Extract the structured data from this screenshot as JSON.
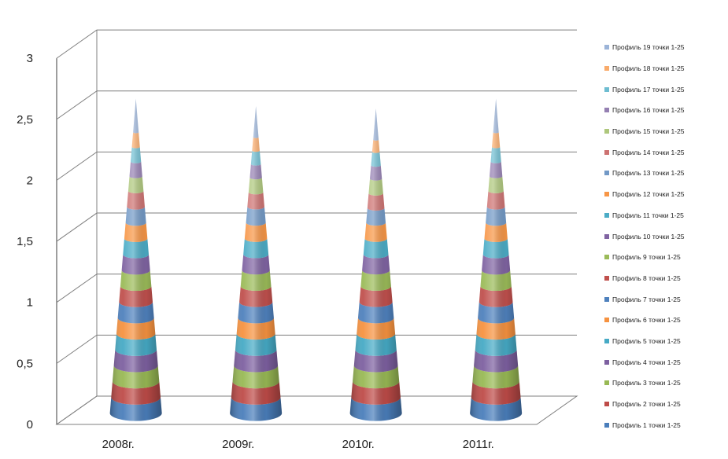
{
  "chart_data": {
    "type": "bar",
    "shape": "cone-3d-stacked",
    "categories": [
      "2008г.",
      "2009г.",
      "2010г.",
      "2011г."
    ],
    "ylim": [
      0,
      3
    ],
    "yticks": [
      "0",
      "0,5",
      "1",
      "1,5",
      "2",
      "2,5",
      "3"
    ],
    "ytick_values": [
      0,
      0.5,
      1,
      1.5,
      2,
      2.5,
      3
    ],
    "grid": true,
    "legend_position": "right",
    "series": [
      {
        "name": "Профиль 1 точки 1-25",
        "color": "#4A7EBB",
        "values": [
          0.13,
          0.13,
          0.13,
          0.13
        ]
      },
      {
        "name": "Профиль 2 точки 1-25",
        "color": "#BE4B48",
        "values": [
          0.13,
          0.13,
          0.13,
          0.13
        ]
      },
      {
        "name": "Профиль 3 точки 1-25",
        "color": "#98B954",
        "values": [
          0.13,
          0.13,
          0.13,
          0.13
        ]
      },
      {
        "name": "Профиль 4 точки 1-25",
        "color": "#7D60A0",
        "values": [
          0.13,
          0.13,
          0.13,
          0.13
        ]
      },
      {
        "name": "Профиль 5 точки 1-25",
        "color": "#46AAC5",
        "values": [
          0.13,
          0.13,
          0.13,
          0.13
        ]
      },
      {
        "name": "Профиль 6 точки 1-25",
        "color": "#F69240",
        "values": [
          0.13,
          0.13,
          0.13,
          0.13
        ]
      },
      {
        "name": "Профиль 7 точки 1-25",
        "color": "#4F81BD",
        "values": [
          0.13,
          0.13,
          0.13,
          0.13
        ]
      },
      {
        "name": "Профиль 8 точки 1-25",
        "color": "#C0504D",
        "values": [
          0.13,
          0.13,
          0.13,
          0.13
        ]
      },
      {
        "name": "Профиль 9 точки 1-25",
        "color": "#9BBB59",
        "values": [
          0.13,
          0.13,
          0.13,
          0.13
        ]
      },
      {
        "name": "Профиль 10 точки 1-25",
        "color": "#8064A2",
        "values": [
          0.13,
          0.13,
          0.13,
          0.13
        ]
      },
      {
        "name": "Профиль 11 точки 1-25",
        "color": "#4BACC6",
        "values": [
          0.13,
          0.13,
          0.13,
          0.13
        ]
      },
      {
        "name": "Профиль 12 точки 1-25",
        "color": "#F79646",
        "values": [
          0.13,
          0.13,
          0.13,
          0.13
        ]
      },
      {
        "name": "Профиль 13 точки 1-25",
        "color": "#7299C6",
        "values": [
          0.13,
          0.13,
          0.12,
          0.13
        ]
      },
      {
        "name": "Профиль 14 точки 1-25",
        "color": "#CD7271",
        "values": [
          0.13,
          0.12,
          0.12,
          0.13
        ]
      },
      {
        "name": "Профиль 15 точки 1-25",
        "color": "#AEC77C",
        "values": [
          0.12,
          0.12,
          0.12,
          0.12
        ]
      },
      {
        "name": "Профиль 16 точки 1-25",
        "color": "#9580B2",
        "values": [
          0.12,
          0.11,
          0.11,
          0.12
        ]
      },
      {
        "name": "Профиль 17 точки 1-25",
        "color": "#6EBDD1",
        "values": [
          0.12,
          0.11,
          0.11,
          0.12
        ]
      },
      {
        "name": "Профиль 18 точки 1-25",
        "color": "#F9AB6B",
        "values": [
          0.12,
          0.11,
          0.1,
          0.12
        ]
      },
      {
        "name": "Профиль 19 точки 1-25",
        "color": "#9CB4D8",
        "values": [
          0.12,
          0.1,
          0.1,
          0.12
        ]
      }
    ]
  }
}
